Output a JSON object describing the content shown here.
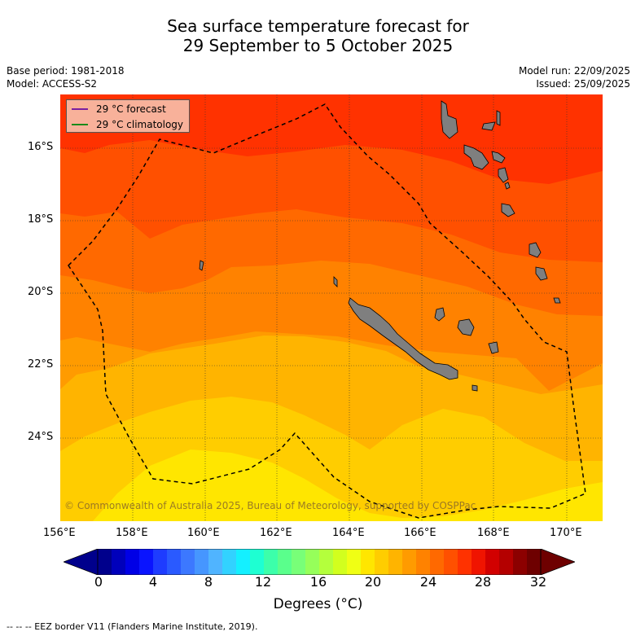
{
  "title_line1": "Sea surface temperature forecast for",
  "title_line2": "29 September to 5 October 2025",
  "left_meta": [
    "Base period: 1981-2018",
    "Model: ACCESS-S2"
  ],
  "right_meta": [
    "Model run: 22/09/2025",
    "Issued: 25/09/2025"
  ],
  "legend": [
    {
      "label": "29 °C  forecast",
      "color": "#7a1fa0"
    },
    {
      "label": "29 °C  climatology",
      "color": "#1a8a1a"
    }
  ],
  "copyright": "© Commonwealth of Australia 2025, Bureau of Meteorology, supported by COSPPac",
  "lat_labels": [
    "16°S",
    "18°S",
    "20°S",
    "22°S",
    "24°S"
  ],
  "lon_labels": [
    "156°E",
    "158°E",
    "160°E",
    "162°E",
    "164°E",
    "166°E",
    "168°E",
    "170°E"
  ],
  "colorbar": {
    "ticks": [
      "0",
      "4",
      "8",
      "12",
      "16",
      "20",
      "24",
      "28",
      "32"
    ],
    "title": "Degrees (°C)",
    "colors": [
      "#00008c",
      "#0000bb",
      "#0000e6",
      "#0a14ff",
      "#1e3cff",
      "#2a5aff",
      "#3c78ff",
      "#4696ff",
      "#50b4ff",
      "#32d2ff",
      "#14f0ff",
      "#1effd2",
      "#3cffaa",
      "#5aff8c",
      "#78ff78",
      "#96ff5a",
      "#b4ff3c",
      "#d2ff1e",
      "#f0ff14",
      "#ffe600",
      "#ffcd00",
      "#ffb400",
      "#ff9b00",
      "#ff8200",
      "#ff6900",
      "#ff5000",
      "#ff3200",
      "#f01400",
      "#d20000",
      "#b40000",
      "#8c0000",
      "#6e0000"
    ]
  },
  "footer": "--  --  -- EEZ border V11 (Flanders Marine Institute, 2019).",
  "chart_data": {
    "type": "contour-map",
    "variable": "Sea surface temperature forecast (°C)",
    "lon_range": [
      156,
      171
    ],
    "lat_range": [
      -26.3,
      -14.5
    ],
    "temperature_bands_top_to_bottom": [
      {
        "range": "28-29",
        "color": "#ff3200"
      },
      {
        "range": "27-28",
        "color": "#ff5000"
      },
      {
        "range": "26-27",
        "color": "#ff6900"
      },
      {
        "range": "25-26",
        "color": "#ff8200"
      },
      {
        "range": "24-25",
        "color": "#ff9b00"
      },
      {
        "range": "23-24",
        "color": "#ffb400"
      },
      {
        "range": "22-23",
        "color": "#ffcd00"
      },
      {
        "range": "21-22",
        "color": "#ffe600"
      }
    ]
  }
}
